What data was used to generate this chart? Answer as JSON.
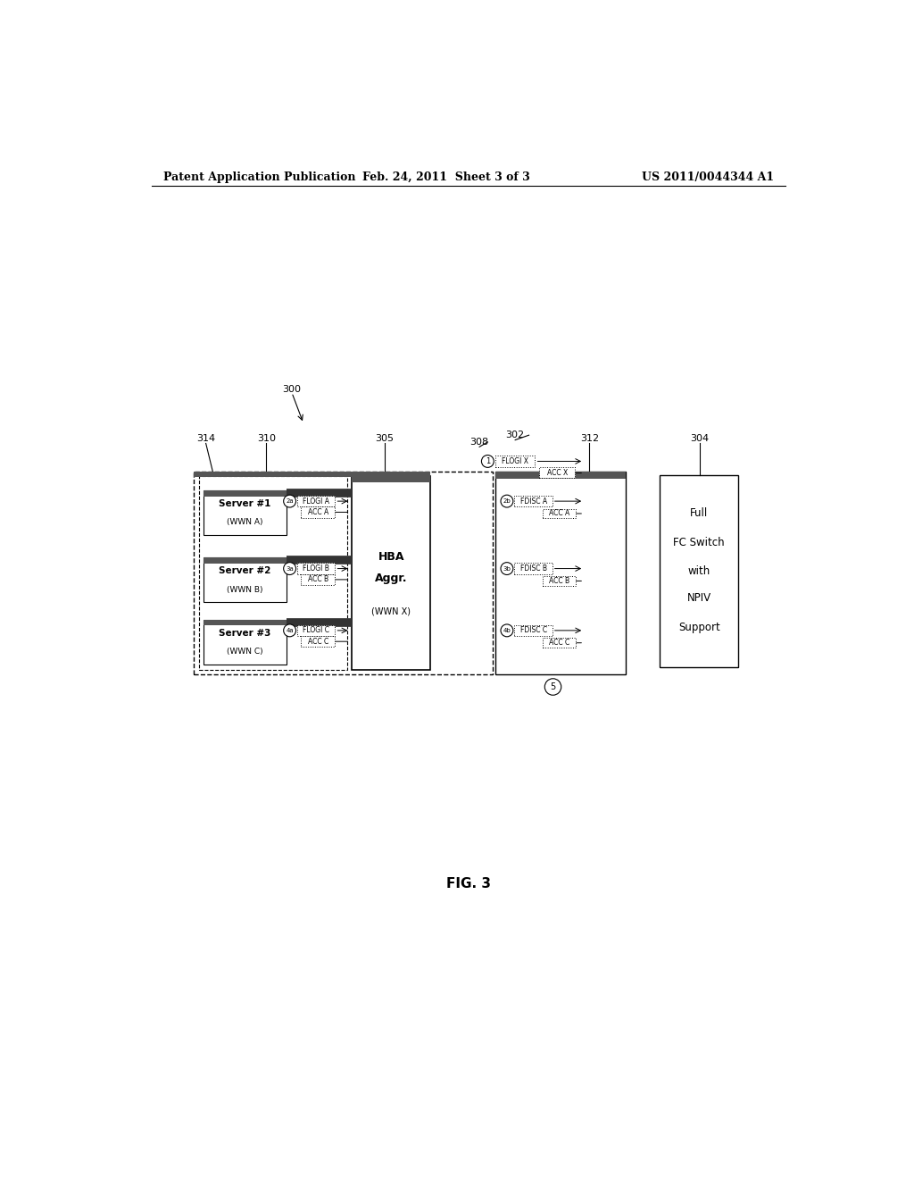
{
  "bg_color": "#ffffff",
  "header_left": "Patent Application Publication",
  "header_mid": "Feb. 24, 2011  Sheet 3 of 3",
  "header_right": "US 2011/0044344 A1",
  "fig_label": "FIG. 3"
}
